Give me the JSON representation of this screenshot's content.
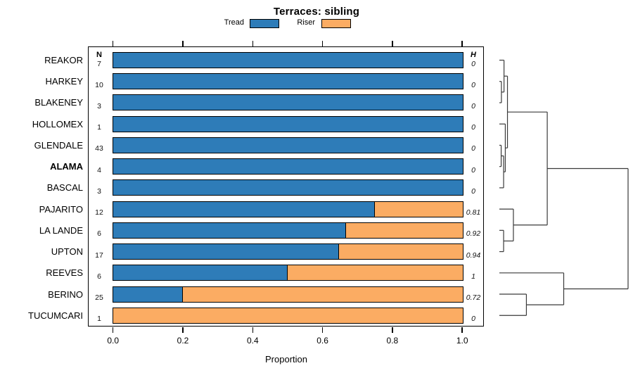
{
  "title": "Terraces: sibling",
  "legend": {
    "items": [
      {
        "label": "Tread",
        "color": "#2E7CB8"
      },
      {
        "label": "Riser",
        "color": "#FBAC63"
      }
    ]
  },
  "columns": {
    "n_header": "N",
    "h_header": "H"
  },
  "axis": {
    "tick_labels": [
      "0.0",
      "0.2",
      "0.4",
      "0.6",
      "0.8",
      "1.0"
    ],
    "xlabel": "Proportion"
  },
  "chart_data": {
    "type": "bar",
    "orientation": "horizontal-stacked",
    "title": "Terraces: sibling",
    "xlabel": "Proportion",
    "xlim": [
      0,
      1
    ],
    "series_names": [
      "Tread",
      "Riser"
    ],
    "colors": {
      "tread": "#2E7CB8",
      "riser": "#FBAC63",
      "border": "#000000"
    },
    "rows": [
      {
        "label": "REAKOR",
        "n": "7",
        "tread": 1.0,
        "riser": 0.0,
        "h": "0",
        "bold": false
      },
      {
        "label": "HARKEY",
        "n": "10",
        "tread": 1.0,
        "riser": 0.0,
        "h": "0",
        "bold": false
      },
      {
        "label": "BLAKENEY",
        "n": "3",
        "tread": 1.0,
        "riser": 0.0,
        "h": "0",
        "bold": false
      },
      {
        "label": "HOLLOMEX",
        "n": "1",
        "tread": 1.0,
        "riser": 0.0,
        "h": "0",
        "bold": false
      },
      {
        "label": "GLENDALE",
        "n": "43",
        "tread": 1.0,
        "riser": 0.0,
        "h": "0",
        "bold": false
      },
      {
        "label": "ALAMA",
        "n": "4",
        "tread": 1.0,
        "riser": 0.0,
        "h": "0",
        "bold": true
      },
      {
        "label": "BASCAL",
        "n": "3",
        "tread": 1.0,
        "riser": 0.0,
        "h": "0",
        "bold": false
      },
      {
        "label": "PAJARITO",
        "n": "12",
        "tread": 0.75,
        "riser": 0.25,
        "h": "0.81",
        "bold": false
      },
      {
        "label": "LA LANDE",
        "n": "6",
        "tread": 0.667,
        "riser": 0.333,
        "h": "0.92",
        "bold": false
      },
      {
        "label": "UPTON",
        "n": "17",
        "tread": 0.647,
        "riser": 0.353,
        "h": "0.94",
        "bold": false
      },
      {
        "label": "REEVES",
        "n": "6",
        "tread": 0.5,
        "riser": 0.5,
        "h": "1",
        "bold": false
      },
      {
        "label": "BERINO",
        "n": "25",
        "tread": 0.2,
        "riser": 0.8,
        "h": "0.72",
        "bold": false
      },
      {
        "label": "TUCUMCARI",
        "n": "1",
        "tread": 0.0,
        "riser": 1.0,
        "h": "0",
        "bold": false
      }
    ]
  },
  "dendrogram": {
    "leaves": [
      "REAKOR",
      "HARKEY",
      "BLAKENEY",
      "HOLLOMEX",
      "GLENDALE",
      "ALAMA",
      "BASCAL",
      "PAJARITO",
      "LA LANDE",
      "UPTON",
      "REEVES",
      "BERINO",
      "TUCUMCARI"
    ],
    "merges": [
      {
        "a": "L1",
        "b": "L2",
        "height": 0.016
      },
      {
        "a": "L0",
        "b": "M0",
        "height": 0.036
      },
      {
        "a": "L4",
        "b": "L5",
        "height": 0.014
      },
      {
        "a": "M2",
        "b": "L6",
        "height": 0.033
      },
      {
        "a": "L3",
        "b": "M3",
        "height": 0.046
      },
      {
        "a": "M1",
        "b": "M4",
        "height": 0.063
      },
      {
        "a": "L8",
        "b": "L9",
        "height": 0.033
      },
      {
        "a": "L7",
        "b": "M6",
        "height": 0.109
      },
      {
        "a": "M5",
        "b": "M7",
        "height": 0.372
      },
      {
        "a": "L11",
        "b": "L12",
        "height": 0.21
      },
      {
        "a": "L10",
        "b": "M9",
        "height": 0.5
      },
      {
        "a": "M8",
        "b": "M10",
        "height": 1.0
      }
    ]
  }
}
